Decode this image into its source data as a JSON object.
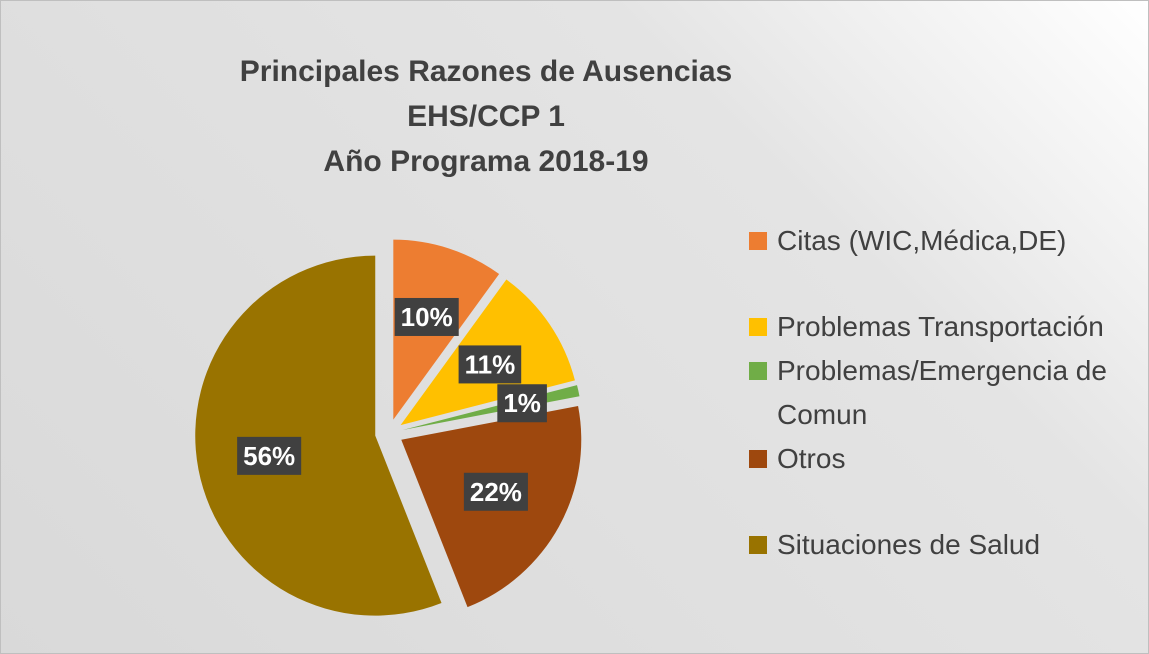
{
  "chart_data": {
    "type": "pie",
    "title": [
      "Principales Razones de Ausencias",
      "EHS/CCP 1",
      "Año Programa 2018-19"
    ],
    "categories": [
      "Citas (WIC,Médica,DE)",
      "Problemas Transportación",
      "Problemas/Emergencia de Comun",
      "Otros",
      "Situaciones de Salud"
    ],
    "values": [
      10,
      11,
      1,
      22,
      56
    ],
    "value_labels": [
      "10%",
      "11%",
      "1%",
      "22%",
      "56%"
    ],
    "colors": [
      "#ed7d31",
      "#ffc000",
      "#70ad47",
      "#9e480e",
      "#997300"
    ],
    "legend": "right"
  }
}
